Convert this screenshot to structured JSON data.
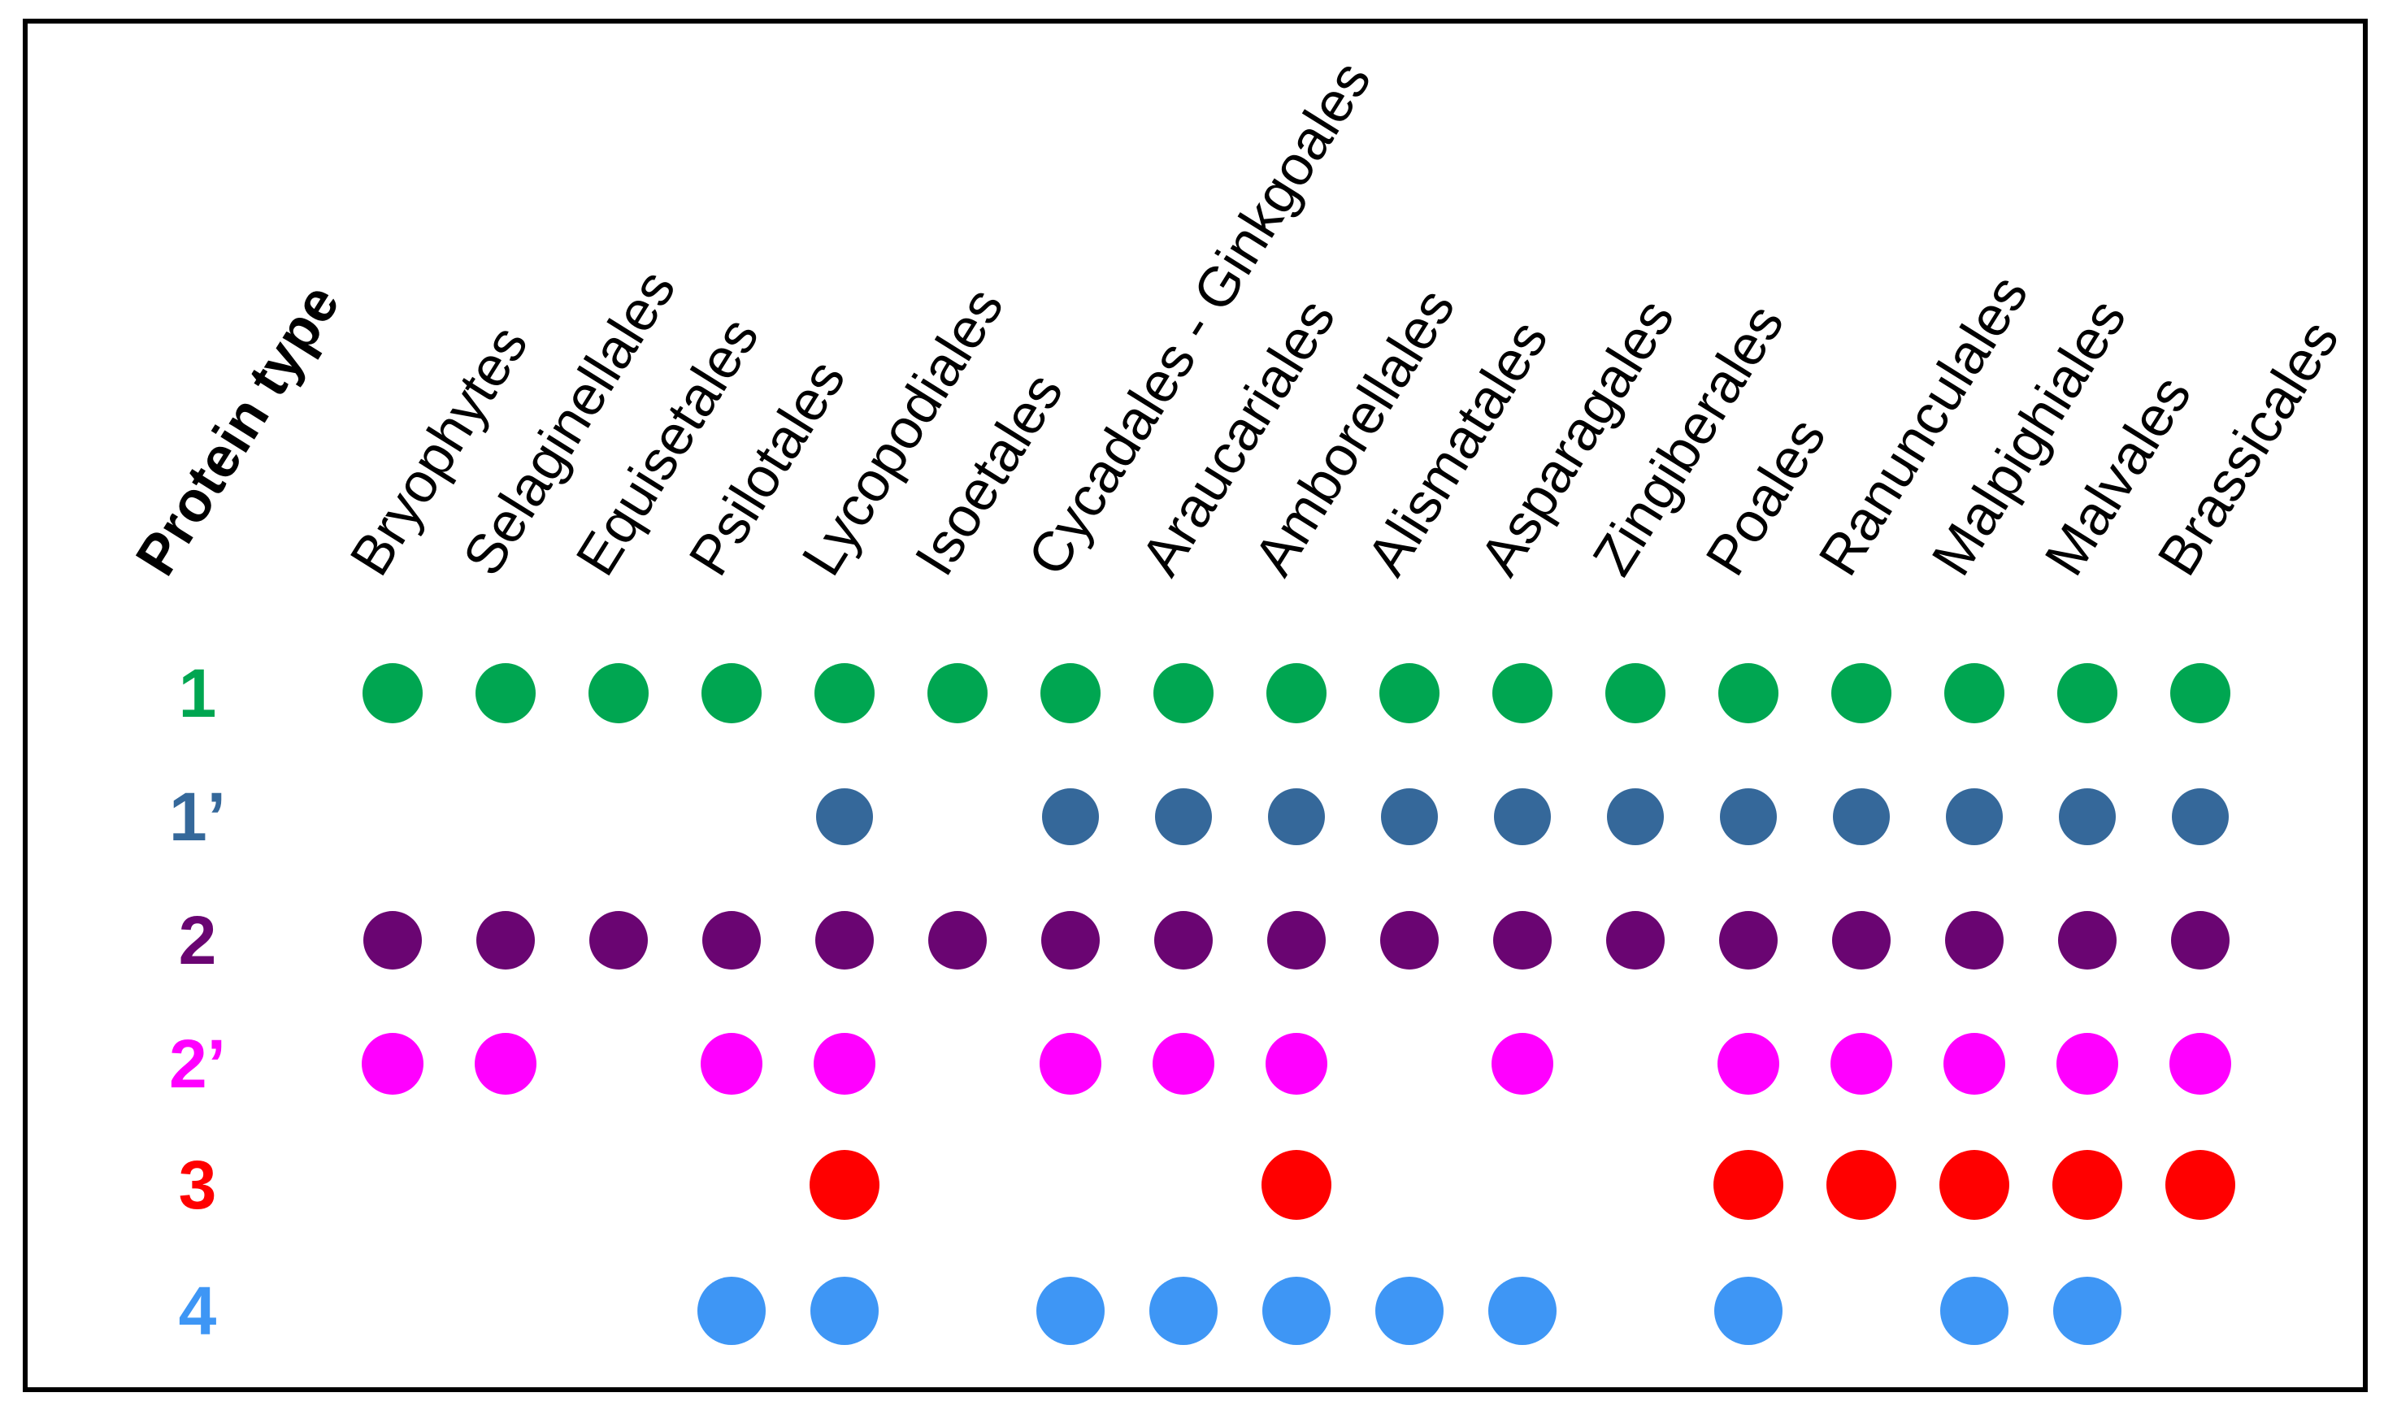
{
  "chart_data": {
    "type": "heatmap",
    "title": "Protein type",
    "x_categories": [
      "Bryophytes",
      "Selaginellales",
      "Equisetales",
      "Psilotales",
      "Lycopodiales",
      "Isoetales",
      "Cycadales - Ginkgoales",
      "Araucariales",
      "Amborellales",
      "Alismatales",
      "Asparagales",
      "Zingiberales",
      "Poales",
      "Ranunculales",
      "Malpighiales",
      "Malvales",
      "Brassicales"
    ],
    "rows": [
      {
        "label": "1",
        "color": "#00A651",
        "presence": [
          1,
          1,
          1,
          1,
          1,
          1,
          1,
          1,
          1,
          1,
          1,
          1,
          1,
          1,
          1,
          1,
          1
        ]
      },
      {
        "label": "1’",
        "color": "#35689A",
        "presence": [
          0,
          0,
          0,
          0,
          1,
          0,
          1,
          1,
          1,
          1,
          1,
          1,
          1,
          1,
          1,
          1,
          1
        ]
      },
      {
        "label": "2",
        "color": "#6A0572",
        "presence": [
          1,
          1,
          1,
          1,
          1,
          1,
          1,
          1,
          1,
          1,
          1,
          1,
          1,
          1,
          1,
          1,
          1
        ]
      },
      {
        "label": "2’",
        "color": "#FF00FF",
        "presence": [
          1,
          1,
          0,
          1,
          1,
          0,
          1,
          1,
          1,
          0,
          1,
          0,
          1,
          1,
          1,
          1,
          1
        ]
      },
      {
        "label": "3",
        "color": "#FF0000",
        "presence": [
          0,
          0,
          0,
          0,
          1,
          0,
          0,
          0,
          1,
          0,
          0,
          0,
          1,
          1,
          1,
          1,
          1
        ]
      },
      {
        "label": "4",
        "color": "#3E96F5",
        "presence": [
          0,
          0,
          0,
          1,
          1,
          0,
          1,
          1,
          1,
          1,
          1,
          0,
          1,
          0,
          1,
          1,
          0
        ]
      }
    ],
    "legend_position": "none",
    "grid": false,
    "background": "#FFFFFF",
    "frame_color": "#000000"
  }
}
